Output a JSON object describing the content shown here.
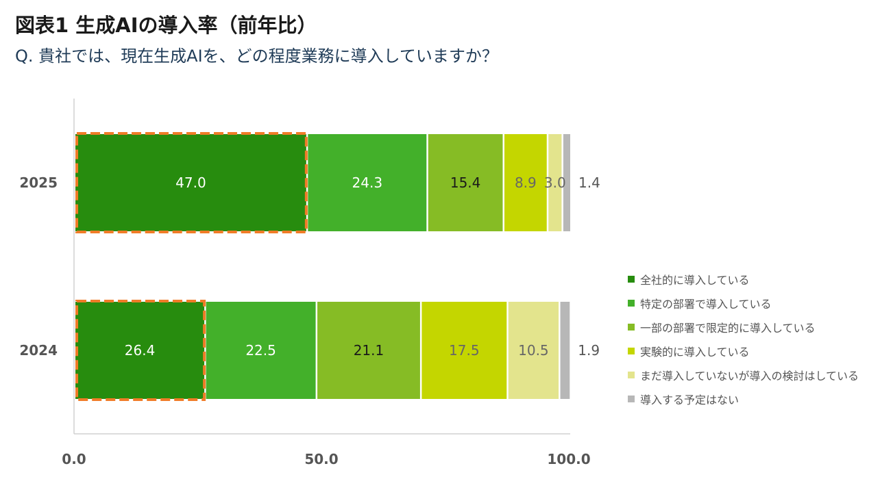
{
  "title": "図表1 生成AIの導入率（前年比）",
  "subtitle": "Q. 貴社では、現在生成AIを、どの程度業務に導入していますか？",
  "chart_data": {
    "type": "bar",
    "orientation": "horizontal",
    "stacked": true,
    "categories": [
      "2025",
      "2024"
    ],
    "series": [
      {
        "name": "全社的に導入している",
        "color": "#278c0e",
        "label_color": "#ffffff",
        "values": [
          47.0,
          26.4
        ]
      },
      {
        "name": "特定の部署で導入している",
        "color": "#43b02a",
        "label_color": "#ffffff",
        "values": [
          24.3,
          22.5
        ]
      },
      {
        "name": "一部の部署で限定的に導入している",
        "color": "#86bc25",
        "label_color": "#1a1a1a",
        "values": [
          15.4,
          21.1
        ]
      },
      {
        "name": "実験的に導入している",
        "color": "#c4d600",
        "label_color": "#666666",
        "values": [
          8.9,
          17.5
        ]
      },
      {
        "name": "まだ導入していないが導入の検討はしている",
        "color": "#e3e48d",
        "label_color": "#666666",
        "values": [
          3.0,
          10.5
        ]
      },
      {
        "name": "導入する予定はない",
        "color": "#b7b7b7",
        "label_color": "#555555",
        "values": [
          1.4,
          1.9
        ]
      }
    ],
    "value_labels": {
      "2025": [
        "47.0",
        "24.3",
        "15.4",
        "8.9",
        "3.0",
        "1.4"
      ],
      "2024": [
        "26.4",
        "22.5",
        "21.1",
        "17.5",
        "10.5",
        "1.9"
      ]
    },
    "x_ticks": [
      0,
      50,
      100
    ],
    "x_tick_labels": [
      "0.0",
      "50.0",
      "100.0"
    ],
    "xlim": [
      0,
      100
    ],
    "xlabel": "",
    "ylabel": "",
    "grid": false,
    "legend_position": "right",
    "highlight": {
      "series_index": 0,
      "style": "dashed-outline",
      "color": "#f07c28"
    }
  }
}
